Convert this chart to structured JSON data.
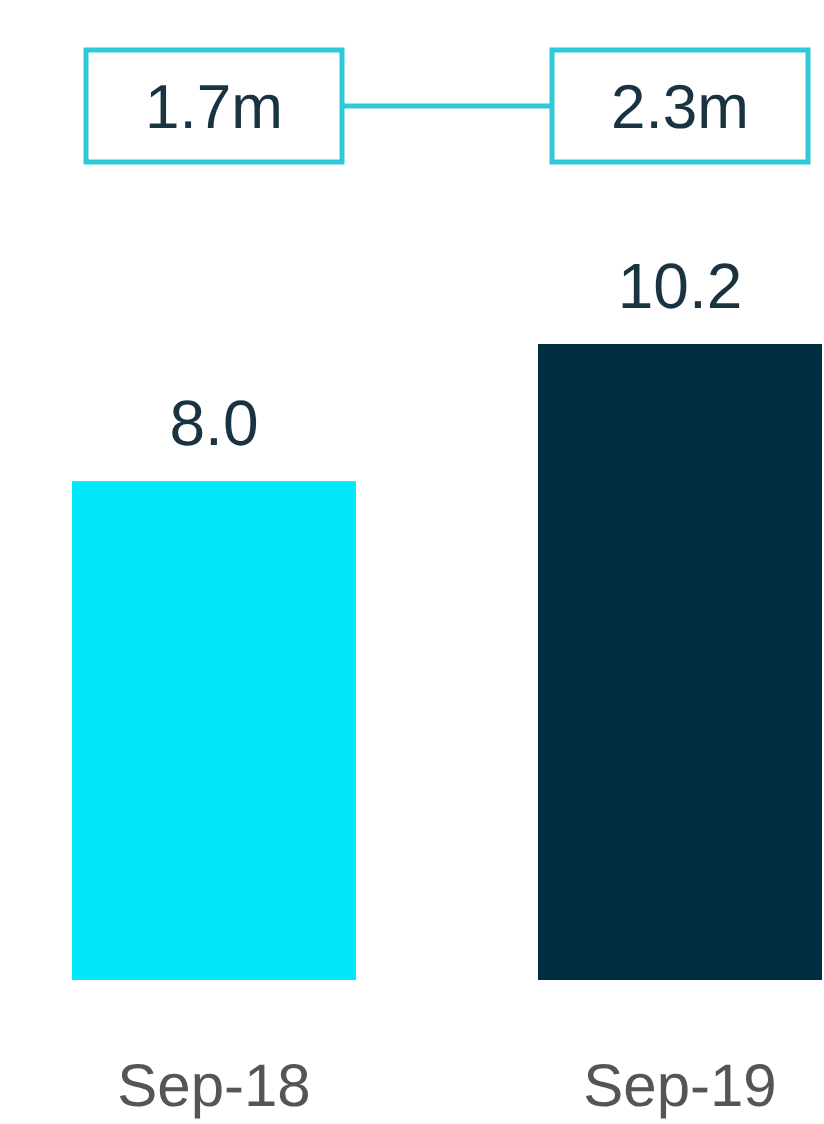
{
  "chart_data": {
    "type": "bar",
    "categories": [
      "Sep-18",
      "Sep-19"
    ],
    "values": [
      8.0,
      10.2
    ],
    "colors": [
      "#00e8fa",
      "#012d40"
    ],
    "value_labels": [
      "8.0",
      "10.2"
    ],
    "annotations": [
      "1.7m",
      "2.3m"
    ]
  }
}
